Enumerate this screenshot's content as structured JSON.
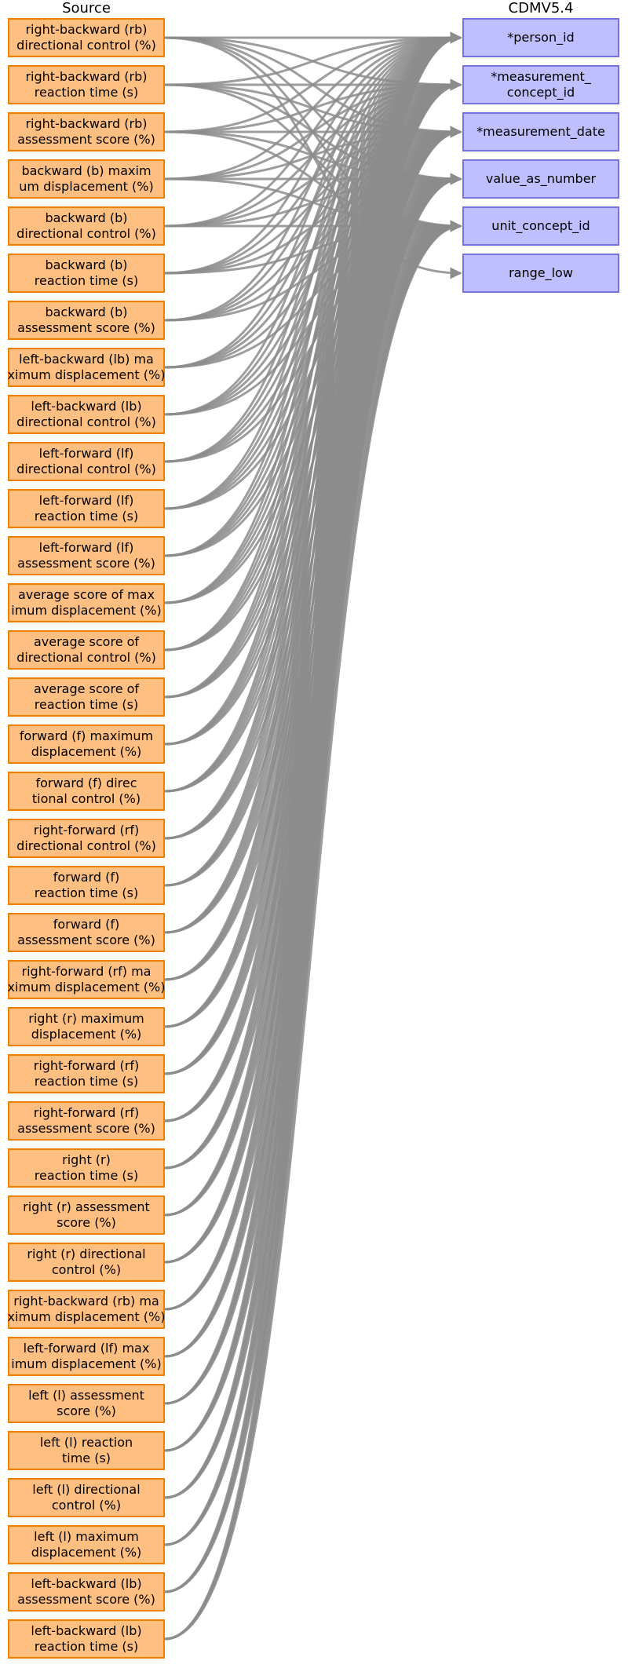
{
  "headers": {
    "source": "Source",
    "target": "CDMV5.4"
  },
  "sources": [
    "right-backward (rb)\ndirectional control (%)",
    "right-backward (rb)\nreaction time (s)",
    "right-backward (rb)\nassessment score (%)",
    "backward (b) maxim\num displacement (%)",
    "backward (b)\ndirectional control (%)",
    "backward (b)\nreaction time (s)",
    "backward (b)\nassessment score (%)",
    "left-backward (lb) ma\nximum displacement (%)",
    "left-backward (lb)\ndirectional control (%)",
    "left-forward (lf)\ndirectional control (%)",
    "left-forward (lf)\nreaction time (s)",
    "left-forward (lf)\nassessment score (%)",
    "average score of max\nimum displacement (%)",
    "average score of\ndirectional control (%)",
    "average score of\nreaction time (s)",
    "forward (f) maximum\ndisplacement (%)",
    "forward (f) direc\ntional control (%)",
    "right-forward (rf)\ndirectional control (%)",
    "forward (f)\nreaction time (s)",
    "forward (f)\nassessment score (%)",
    "right-forward (rf) ma\nximum displacement (%)",
    "right (r) maximum\ndisplacement (%)",
    "right-forward (rf)\nreaction time (s)",
    "right-forward (rf)\nassessment score (%)",
    "right (r)\nreaction time (s)",
    "right (r) assessment\nscore (%)",
    "right (r) directional\ncontrol (%)",
    "right-backward (rb) ma\nximum displacement (%)",
    "left-forward (lf) max\nimum displacement (%)",
    "left (l) assessment\nscore (%)",
    "left (l) reaction\ntime (s)",
    "left (l) directional\ncontrol (%)",
    "left (l) maximum\ndisplacement (%)",
    "left-backward (lb)\nassessment score (%)",
    "left-backward (lb)\nreaction time (s)"
  ],
  "targets": [
    "*person_id",
    "*measurement_\nconcept_id",
    "*measurement_date",
    "value_as_number",
    "unit_concept_id",
    "range_low"
  ],
  "colors": {
    "source_fill": "#ffbf80",
    "source_border": "#f08000",
    "target_fill": "#bfbfff",
    "target_border": "#7373e6",
    "edge": "#8c8c8c"
  },
  "mappings": {
    "all_sources_to": [
      0,
      1,
      2,
      3,
      4
    ],
    "extra": [
      {
        "from": 0,
        "to": 5
      }
    ]
  }
}
